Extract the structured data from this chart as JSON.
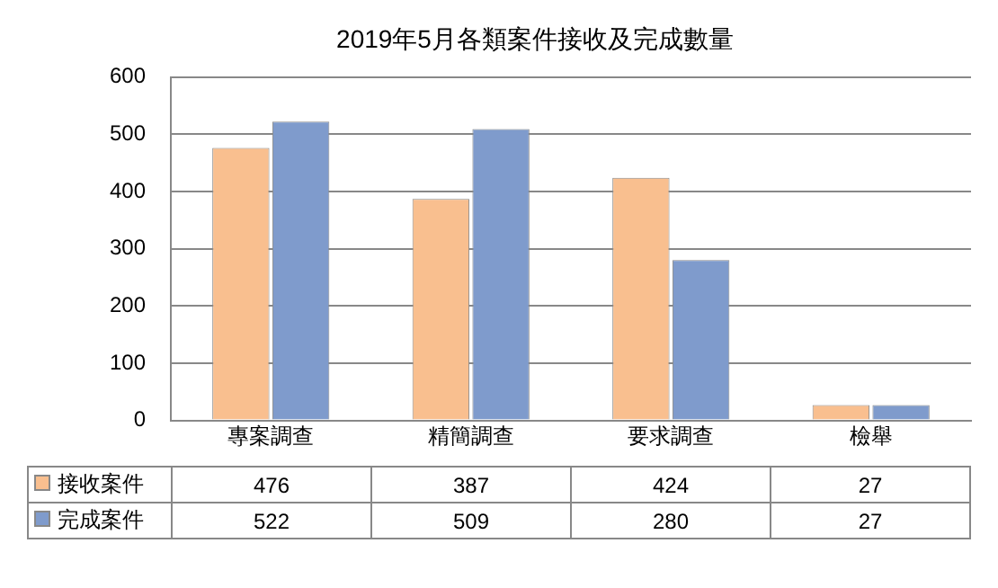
{
  "chart_data": {
    "type": "bar",
    "title": "2019年5月各類案件接收及完成數量",
    "categories": [
      "專案調查",
      "精簡調查",
      "要求調查",
      "檢舉"
    ],
    "series": [
      {
        "name": "接收案件",
        "color": "#f9bf8f",
        "values": [
          476,
          387,
          424,
          27
        ]
      },
      {
        "name": "完成案件",
        "color": "#7f9bcc",
        "values": [
          522,
          509,
          280,
          27
        ]
      }
    ],
    "ylim": [
      0,
      600
    ],
    "yticks": [
      0,
      100,
      200,
      300,
      400,
      500,
      600
    ],
    "grid": "y",
    "legend": "bottom",
    "data_labels": true
  }
}
